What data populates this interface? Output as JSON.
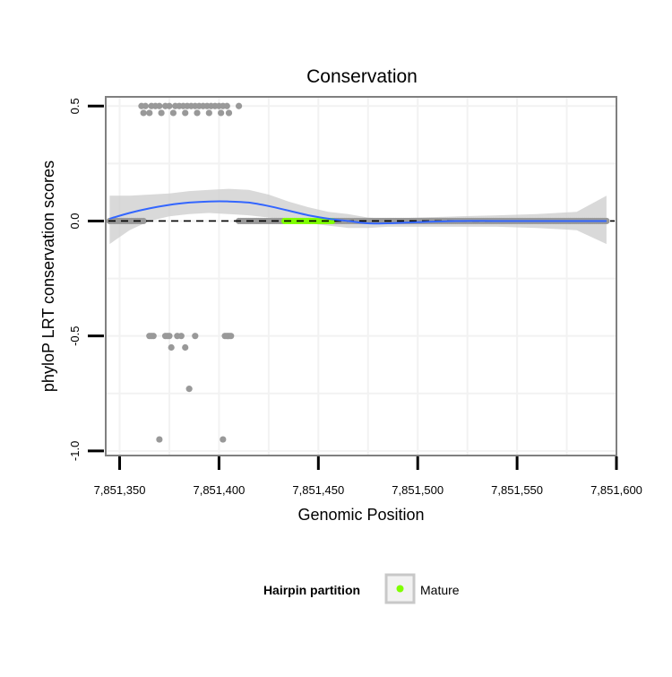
{
  "chart_data": {
    "type": "scatter",
    "title": "Conservation",
    "xlabel": "Genomic Position",
    "ylabel": "phyloP LRT conservation scores",
    "xlim": [
      7851343,
      7851600
    ],
    "ylim": [
      -1.02,
      0.54
    ],
    "x_ticks": [
      7851350,
      7851400,
      7851450,
      7851500,
      7851550,
      7851600
    ],
    "x_tick_labels": [
      "7,851,350",
      "7,851,400",
      "7,851,450",
      "7,851,500",
      "7,851,550",
      "7,851,600"
    ],
    "y_ticks": [
      -1.0,
      -0.5,
      0.0,
      0.5
    ],
    "y_tick_labels": [
      "-1.0",
      "-0.5",
      "0.0",
      "0.5"
    ],
    "grid": true,
    "reference_line": {
      "y": 0,
      "style": "dashed"
    },
    "legend": {
      "title": "Hairpin partition",
      "position": "bottom",
      "entries": [
        {
          "label": "Mature",
          "color": "#7fff00"
        }
      ]
    },
    "colors": {
      "points": "#999999",
      "mature": "#7fff00",
      "smooth": "#3366ff",
      "ribbon": "#cccccc",
      "panel_border": "#808080",
      "grid": "#f2f2f2"
    },
    "points": {
      "gray_high": [
        [
          7851361,
          0.5
        ],
        [
          7851363,
          0.5
        ],
        [
          7851366,
          0.5
        ],
        [
          7851368,
          0.5
        ],
        [
          7851370,
          0.5
        ],
        [
          7851373,
          0.5
        ],
        [
          7851375,
          0.5
        ],
        [
          7851378,
          0.5
        ],
        [
          7851380,
          0.5
        ],
        [
          7851382,
          0.5
        ],
        [
          7851384,
          0.5
        ],
        [
          7851386,
          0.5
        ],
        [
          7851388,
          0.5
        ],
        [
          7851390,
          0.5
        ],
        [
          7851392,
          0.5
        ],
        [
          7851394,
          0.5
        ],
        [
          7851396,
          0.5
        ],
        [
          7851398,
          0.5
        ],
        [
          7851400,
          0.5
        ],
        [
          7851402,
          0.5
        ],
        [
          7851404,
          0.5
        ],
        [
          7851410,
          0.5
        ],
        [
          7851362,
          0.47
        ],
        [
          7851365,
          0.47
        ],
        [
          7851371,
          0.47
        ],
        [
          7851377,
          0.47
        ],
        [
          7851383,
          0.47
        ],
        [
          7851389,
          0.47
        ],
        [
          7851395,
          0.47
        ],
        [
          7851401,
          0.47
        ],
        [
          7851405,
          0.47
        ]
      ],
      "gray_low": [
        [
          7851365,
          -0.5
        ],
        [
          7851366,
          -0.5
        ],
        [
          7851367,
          -0.5
        ],
        [
          7851373,
          -0.5
        ],
        [
          7851374,
          -0.5
        ],
        [
          7851375,
          -0.5
        ],
        [
          7851379,
          -0.5
        ],
        [
          7851381,
          -0.5
        ],
        [
          7851388,
          -0.5
        ],
        [
          7851403,
          -0.5
        ],
        [
          7851404,
          -0.5
        ],
        [
          7851405,
          -0.5
        ],
        [
          7851406,
          -0.5
        ],
        [
          7851376,
          -0.55
        ],
        [
          7851383,
          -0.55
        ],
        [
          7851385,
          -0.73
        ],
        [
          7851370,
          -0.95
        ],
        [
          7851402,
          -0.95
        ]
      ],
      "gray_zero_ranges": [
        [
          7851345,
          7851362
        ],
        [
          7851410,
          7851432
        ],
        [
          7851458,
          7851595
        ]
      ],
      "mature_range": [
        7851433,
        7851457
      ]
    },
    "smooth": {
      "x": [
        7851345,
        7851355,
        7851365,
        7851375,
        7851385,
        7851395,
        7851405,
        7851415,
        7851425,
        7851435,
        7851445,
        7851455,
        7851465,
        7851475,
        7851485,
        7851500,
        7851520,
        7851540,
        7851560,
        7851580,
        7851595
      ],
      "y": [
        0.01,
        0.035,
        0.055,
        0.07,
        0.08,
        0.085,
        0.085,
        0.08,
        0.065,
        0.045,
        0.025,
        0.01,
        0.0,
        -0.01,
        -0.01,
        -0.005,
        0.0,
        0.0,
        0.0,
        0.0,
        0.0
      ],
      "lower": [
        -0.1,
        -0.04,
        0.0,
        0.02,
        0.03,
        0.035,
        0.03,
        0.025,
        0.015,
        0.005,
        -0.01,
        -0.02,
        -0.03,
        -0.03,
        -0.025,
        -0.025,
        -0.025,
        -0.025,
        -0.03,
        -0.04,
        -0.1
      ],
      "upper": [
        0.11,
        0.11,
        0.115,
        0.12,
        0.13,
        0.135,
        0.14,
        0.135,
        0.115,
        0.085,
        0.06,
        0.04,
        0.03,
        0.015,
        0.01,
        0.015,
        0.02,
        0.025,
        0.03,
        0.04,
        0.11
      ]
    }
  }
}
